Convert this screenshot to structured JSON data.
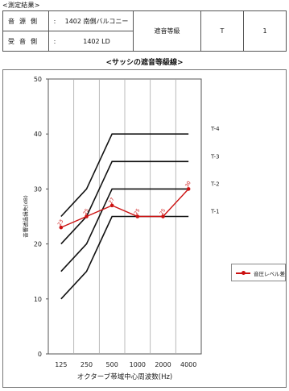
{
  "heading": "<測定結果>",
  "result_table": {
    "rows": [
      {
        "label": "音源側",
        "colon": ":",
        "value": "1402 南側バルコニー"
      },
      {
        "label": "受音側",
        "colon": ":",
        "value": "1402 LD"
      }
    ],
    "grade_label": "遮音等級",
    "grade_value": "T",
    "grade_number": "1"
  },
  "chart_title": "<サッシの遮音等級線>",
  "chart_data": {
    "type": "line",
    "title": "<サッシの遮音等級線>",
    "xlabel": "オクターブ帯域中心周波数(Hz)",
    "ylabel": "音響透過損失(dB)",
    "x": [
      "125",
      "250",
      "500",
      "1000",
      "2000",
      "4000"
    ],
    "ylim": [
      0,
      50
    ],
    "yticks": [
      "0",
      "10",
      "20",
      "30",
      "40",
      "50"
    ],
    "grid": "vertical",
    "series": [
      {
        "name": "音圧レベル差",
        "values": [
          23,
          25,
          27,
          25,
          25,
          30
        ],
        "labels": [
          "23",
          "25",
          "27",
          "25",
          "25",
          "30"
        ],
        "color": "#cc1111"
      }
    ],
    "reference_lines": [
      {
        "name": "T-4",
        "values": [
          25,
          30,
          40,
          40,
          40,
          40
        ]
      },
      {
        "name": "T-3",
        "values": [
          20,
          25,
          35,
          35,
          35,
          35
        ]
      },
      {
        "name": "T-2",
        "values": [
          15,
          20,
          30,
          30,
          30,
          30
        ]
      },
      {
        "name": "T-1",
        "values": [
          10,
          15,
          25,
          25,
          25,
          25
        ]
      }
    ],
    "legend": "right"
  }
}
